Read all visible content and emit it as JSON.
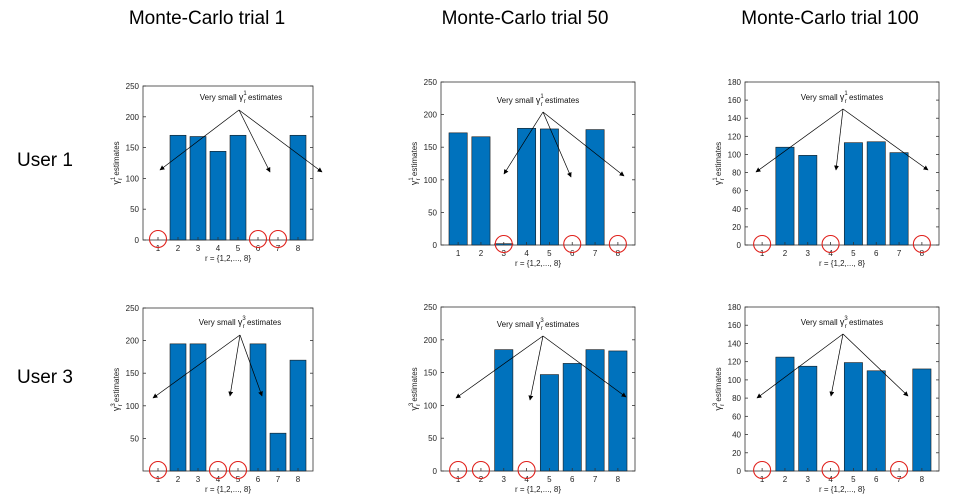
{
  "column_titles": [
    "Monte-Carlo trial 1",
    "Monte-Carlo trial 50",
    "Monte-Carlo trial 100"
  ],
  "row_labels": [
    "User 1",
    "User 3"
  ],
  "colors": {
    "bar": "#0072BD",
    "bar_edge": "#1a1a1a",
    "circle": "#e0201b",
    "axis": "#333333"
  },
  "chart_data": [
    {
      "type": "bar",
      "user": 1,
      "trial": 1,
      "title": "",
      "categories": [
        "1",
        "2",
        "3",
        "4",
        "5",
        "6",
        "7",
        "8"
      ],
      "values": [
        0,
        170,
        168,
        144,
        170,
        0,
        0,
        170
      ],
      "ylim": [
        0,
        250
      ],
      "yticks": [
        0,
        50,
        100,
        150,
        200,
        250
      ],
      "xlabel": "r = {1,2,..., 8}",
      "ylabel": "γ r 1 estimates",
      "ylabel_main": "estimates",
      "gamma_sup": "1",
      "annotation": "Very small γ r 1 estimates",
      "annotation_pre": "Very small",
      "annotation_post": "estimates",
      "circled": [
        1,
        6,
        7
      ]
    },
    {
      "type": "bar",
      "user": 1,
      "trial": 50,
      "title": "",
      "categories": [
        "1",
        "2",
        "3",
        "4",
        "5",
        "6",
        "7",
        "8"
      ],
      "values": [
        172,
        166,
        2,
        179,
        178,
        0,
        177,
        0
      ],
      "ylim": [
        0,
        250
      ],
      "yticks": [
        0,
        50,
        100,
        150,
        200,
        250
      ],
      "xlabel": "r = {1,2,..., 8}",
      "ylabel": "γ r 1 estimates",
      "ylabel_main": "estimates",
      "gamma_sup": "1",
      "annotation": "Very small γ r 1 estimates",
      "annotation_pre": "Very small",
      "annotation_post": "estimates",
      "circled": [
        3,
        6,
        8
      ]
    },
    {
      "type": "bar",
      "user": 1,
      "trial": 100,
      "title": "",
      "categories": [
        "1",
        "2",
        "3",
        "4",
        "5",
        "6",
        "7",
        "8"
      ],
      "values": [
        0,
        108,
        99,
        0,
        113,
        114,
        102,
        0
      ],
      "ylim": [
        0,
        180
      ],
      "yticks": [
        0,
        20,
        40,
        60,
        80,
        100,
        120,
        140,
        160,
        180
      ],
      "xlabel": "r = {1,2,..., 8}",
      "ylabel": "γ r 1 estimates",
      "ylabel_main": "estimates",
      "gamma_sup": "1",
      "annotation": "Very small γ r 1 estimates",
      "annotation_pre": "Very small",
      "annotation_post": "estimates",
      "circled": [
        1,
        4,
        8
      ]
    },
    {
      "type": "bar",
      "user": 3,
      "trial": 1,
      "title": "",
      "categories": [
        "1",
        "2",
        "3",
        "4",
        "5",
        "6",
        "7",
        "8"
      ],
      "values": [
        0,
        195,
        195,
        0,
        0,
        195,
        58,
        170
      ],
      "ylim": [
        0,
        250
      ],
      "yticks": [
        50,
        100,
        150,
        200,
        250
      ],
      "xlabel": "r = {1,2,..., 8}",
      "ylabel": "γ r 3 estimates",
      "ylabel_main": "estimates",
      "gamma_sup": "3",
      "annotation": "Very small γ r 3 estimates",
      "annotation_pre": "Very small",
      "annotation_post": "estimates",
      "circled": [
        1,
        4,
        5
      ]
    },
    {
      "type": "bar",
      "user": 3,
      "trial": 50,
      "title": "",
      "categories": [
        "1",
        "2",
        "3",
        "4",
        "5",
        "6",
        "7",
        "8"
      ],
      "values": [
        0,
        0,
        185,
        0,
        147,
        164,
        185,
        183
      ],
      "ylim": [
        0,
        250
      ],
      "yticks": [
        0,
        50,
        100,
        150,
        200,
        250
      ],
      "xlabel": "r = {1,2,..., 8}",
      "ylabel": "γ r 3 estimates",
      "ylabel_main": "estimates",
      "gamma_sup": "3",
      "annotation": "Very small γ r 3 estimates",
      "annotation_pre": "Very small",
      "annotation_post": "estimates",
      "circled": [
        1,
        2,
        4
      ]
    },
    {
      "type": "bar",
      "user": 3,
      "trial": 100,
      "title": "",
      "categories": [
        "1",
        "2",
        "3",
        "4",
        "5",
        "6",
        "7",
        "8"
      ],
      "values": [
        0,
        125,
        115,
        0,
        119,
        110,
        0,
        112
      ],
      "ylim": [
        0,
        180
      ],
      "yticks": [
        0,
        20,
        40,
        60,
        80,
        100,
        120,
        140,
        160,
        180
      ],
      "xlabel": "r = {1,2,..., 8}",
      "ylabel": "γ r 3 estimates",
      "ylabel_main": "estimates",
      "gamma_sup": "3",
      "annotation": "Very small γ r 3 estimates",
      "annotation_pre": "Very small",
      "annotation_post": "estimates",
      "circled": [
        1,
        4,
        7
      ]
    }
  ]
}
